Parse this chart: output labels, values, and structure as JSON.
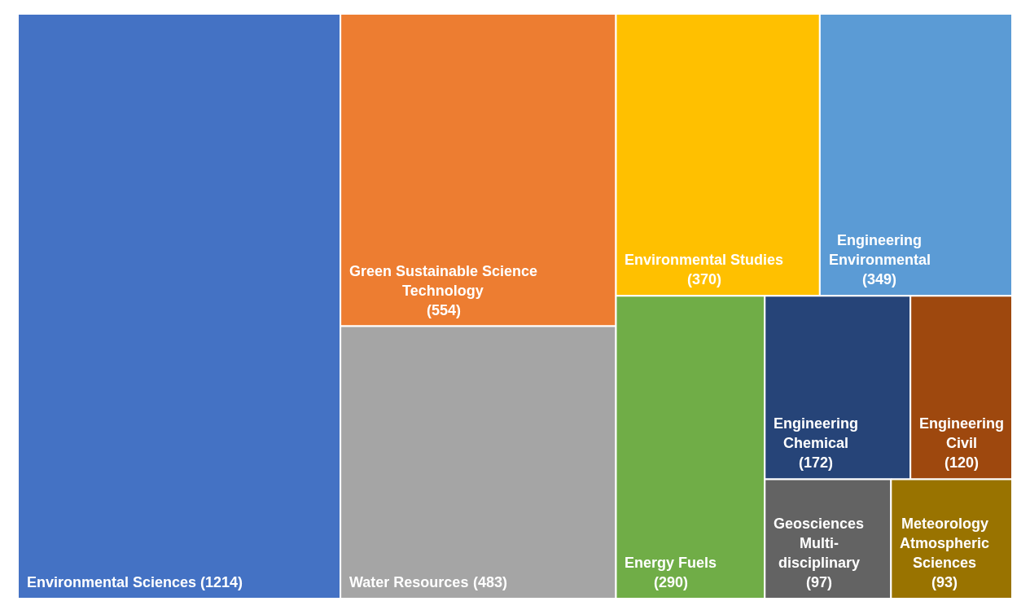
{
  "chart_data": {
    "type": "other",
    "categories": [
      "Environmental Sciences",
      "Green Sustainable Science Technology",
      "Water Resources",
      "Environmental Studies",
      "Engineering Environmental",
      "Energy Fuels",
      "Engineering Chemical",
      "Engineering Civil",
      "Geosciences Multi-disciplinary",
      "Meteorology Atmospheric Sciences"
    ],
    "values": [
      1214,
      554,
      483,
      370,
      349,
      290,
      172,
      120,
      97,
      93
    ],
    "value_labels": [
      "(1214)",
      "(554)",
      "(483)",
      "(370)",
      "(349)",
      "(290)",
      "(172)",
      "(120)",
      "(97)",
      "(93)"
    ],
    "colors": [
      "#4472c4",
      "#ed7d31",
      "#a5a5a5",
      "#ffc000",
      "#5b9bd5",
      "#70ad47",
      "#264478",
      "#9e480e",
      "#636363",
      "#997300"
    ]
  }
}
